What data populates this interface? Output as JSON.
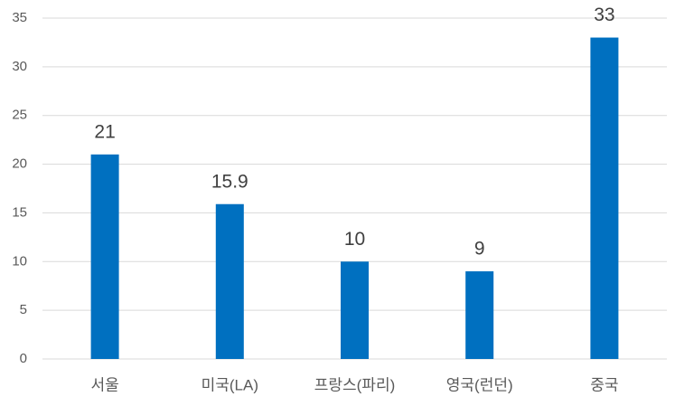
{
  "chart_data": {
    "type": "bar",
    "categories": [
      "서울",
      "미국(LA)",
      "프랑스(파리)",
      "영국(런던)",
      "중국"
    ],
    "values": [
      21,
      15.9,
      10,
      9,
      33
    ],
    "color": "#0070c0",
    "ylim": [
      0,
      35
    ],
    "yticks": [
      0,
      5,
      10,
      15,
      20,
      25,
      30,
      35
    ],
    "grid": true,
    "data_labels": true
  }
}
